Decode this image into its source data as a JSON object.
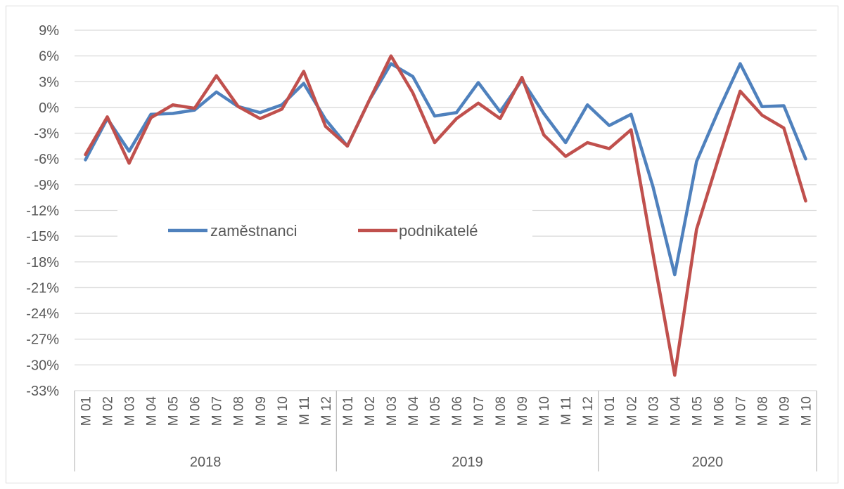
{
  "chart_data": {
    "type": "line",
    "title": "",
    "xlabel": "",
    "ylabel": "",
    "ylim": [
      -33,
      9
    ],
    "y_tick_step": 3,
    "y_tick_labels": [
      "9%",
      "6%",
      "3%",
      "0%",
      "-3%",
      "-6%",
      "-9%",
      "-12%",
      "-15%",
      "-18%",
      "-21%",
      "-24%",
      "-27%",
      "-30%",
      "-33%"
    ],
    "grid": true,
    "legend_position": "inside-left",
    "years": [
      {
        "label": "2018",
        "months": [
          "M 01",
          "M 02",
          "M 03",
          "M 04",
          "M 05",
          "M 06",
          "M 07",
          "M 08",
          "M 09",
          "M 10",
          "M 11",
          "M 12"
        ]
      },
      {
        "label": "2019",
        "months": [
          "M 01",
          "M 02",
          "M 03",
          "M 04",
          "M 05",
          "M 06",
          "M 07",
          "M 08",
          "M 09",
          "M 10",
          "M 11",
          "M 12"
        ]
      },
      {
        "label": "2020",
        "months": [
          "M 01",
          "M 02",
          "M 03",
          "M 04",
          "M 05",
          "M 06",
          "M 07",
          "M 08",
          "M 09",
          "M 10"
        ]
      }
    ],
    "series": [
      {
        "name": "zaměstnanci",
        "color": "#4f81bd",
        "values": [
          -6.1,
          -1.3,
          -5.1,
          -0.8,
          -0.7,
          -0.3,
          1.8,
          0.1,
          -0.6,
          0.3,
          2.8,
          -1.4,
          -4.5,
          0.8,
          5.1,
          3.6,
          -1.0,
          -0.6,
          2.9,
          -0.5,
          3.2,
          -0.7,
          -4.1,
          0.3,
          -2.1,
          -0.8,
          -9.2,
          -19.5,
          -6.3,
          -0.4,
          5.1,
          0.1,
          0.2,
          -6.0
        ]
      },
      {
        "name": "podnikatelé",
        "color": "#c0504d",
        "values": [
          -5.5,
          -1.1,
          -6.5,
          -1.2,
          0.3,
          -0.1,
          3.7,
          0.1,
          -1.3,
          -0.2,
          4.2,
          -2.2,
          -4.5,
          0.8,
          6.0,
          1.7,
          -4.1,
          -1.3,
          0.5,
          -1.3,
          3.5,
          -3.2,
          -5.7,
          -4.1,
          -4.8,
          -2.6,
          -17.0,
          -31.2,
          -14.2,
          -6.0,
          1.9,
          -0.9,
          -2.4,
          -10.9
        ]
      }
    ]
  }
}
